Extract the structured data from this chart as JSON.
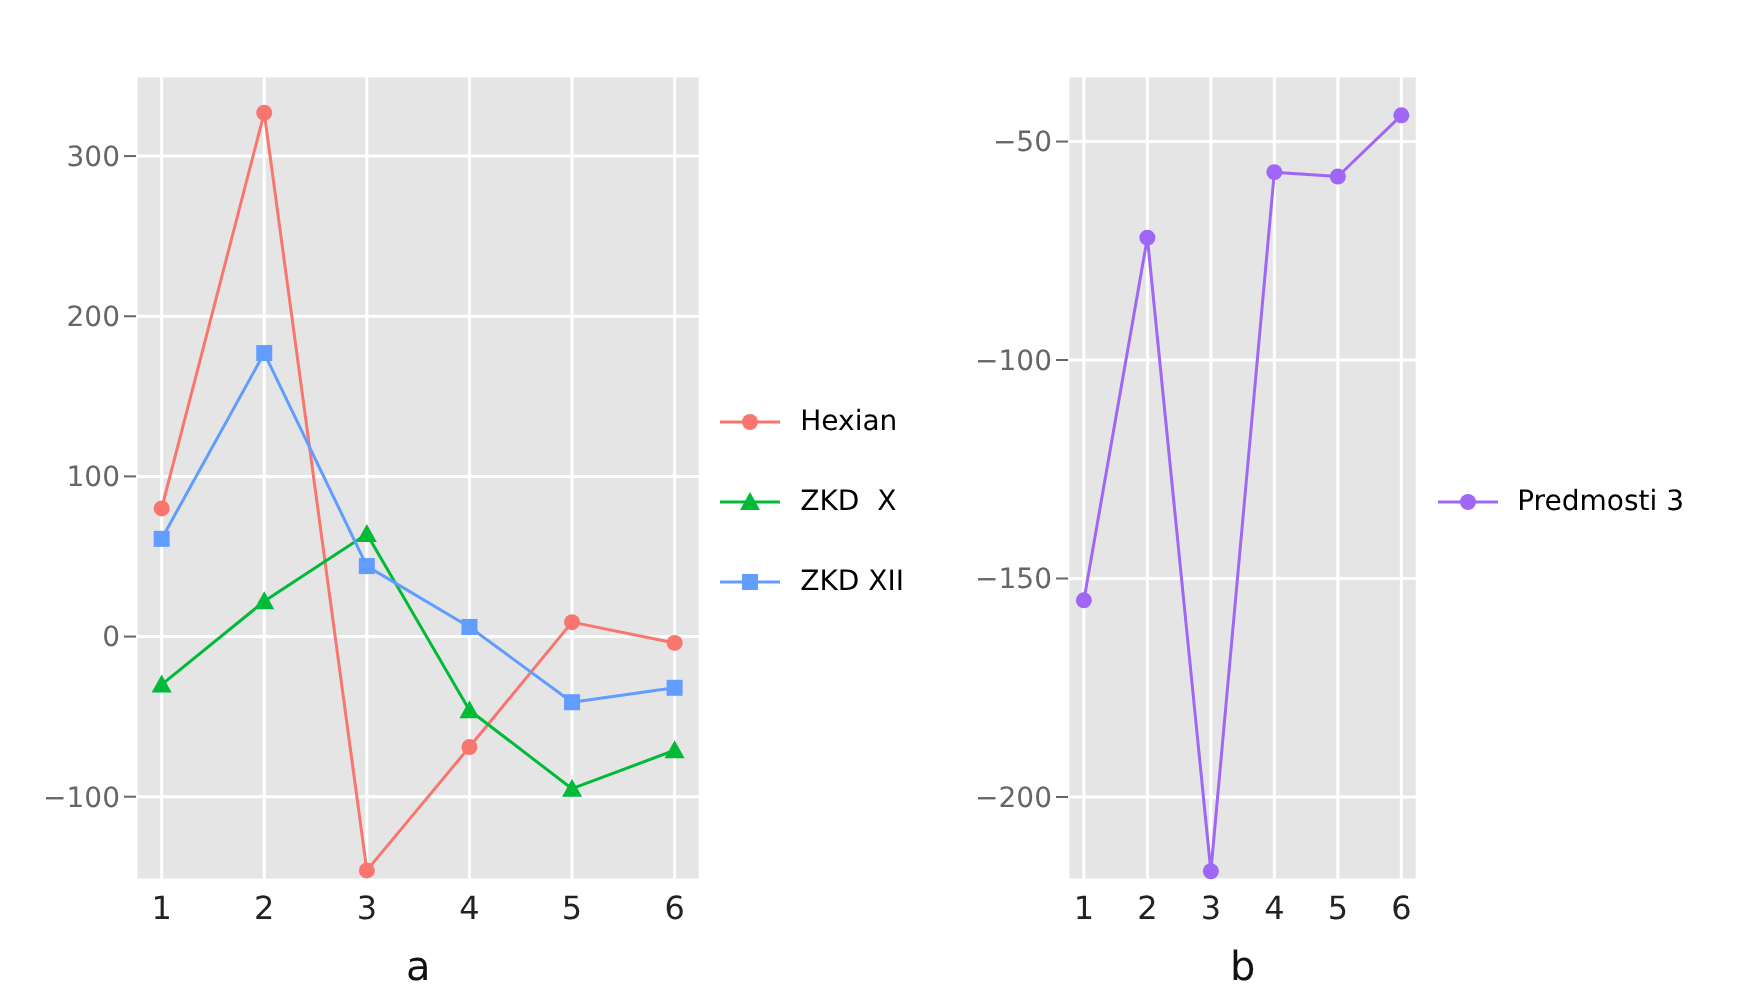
{
  "chart_data": [
    {
      "type": "line",
      "xlabel": "a",
      "x": [
        1,
        2,
        3,
        4,
        5,
        6
      ],
      "xlim": [
        0.75,
        6.25
      ],
      "xticks": [
        1,
        2,
        3,
        4,
        5,
        6
      ],
      "ylim": [
        -152,
        350
      ],
      "yticks": [
        {
          "value": -100,
          "label": "−100"
        },
        0,
        100,
        200,
        300
      ],
      "grid": true,
      "legend": "right",
      "series": [
        {
          "name": "Hexian",
          "color": "#f8766d",
          "marker": "circle",
          "values": [
            80,
            327,
            -146,
            -69,
            9,
            -4
          ]
        },
        {
          "name": "ZKD  X",
          "color": "#00ba38",
          "marker": "triangle",
          "values": [
            -30,
            22,
            64,
            -46,
            -95,
            -71
          ]
        },
        {
          "name": "ZKD XII",
          "color": "#619cff",
          "marker": "square",
          "values": [
            61,
            177,
            44,
            6,
            -41,
            -32
          ]
        }
      ]
    },
    {
      "type": "line",
      "xlabel": "b",
      "x": [
        1,
        2,
        3,
        4,
        5,
        6
      ],
      "xlim": [
        0.75,
        6.25
      ],
      "xticks": [
        1,
        2,
        3,
        4,
        5,
        6
      ],
      "ylim": [
        -219,
        -35
      ],
      "yticks": [
        {
          "value": -200,
          "label": "−200"
        },
        {
          "value": -150,
          "label": "−150"
        },
        {
          "value": -100,
          "label": "−100"
        },
        {
          "value": -50,
          "label": "−50"
        }
      ],
      "grid": true,
      "legend": "right",
      "series": [
        {
          "name": "Predmosti 3",
          "color": "#a066f5",
          "marker": "circle",
          "values": [
            -155,
            -72,
            -217,
            -57,
            -58,
            -44
          ]
        }
      ]
    }
  ]
}
